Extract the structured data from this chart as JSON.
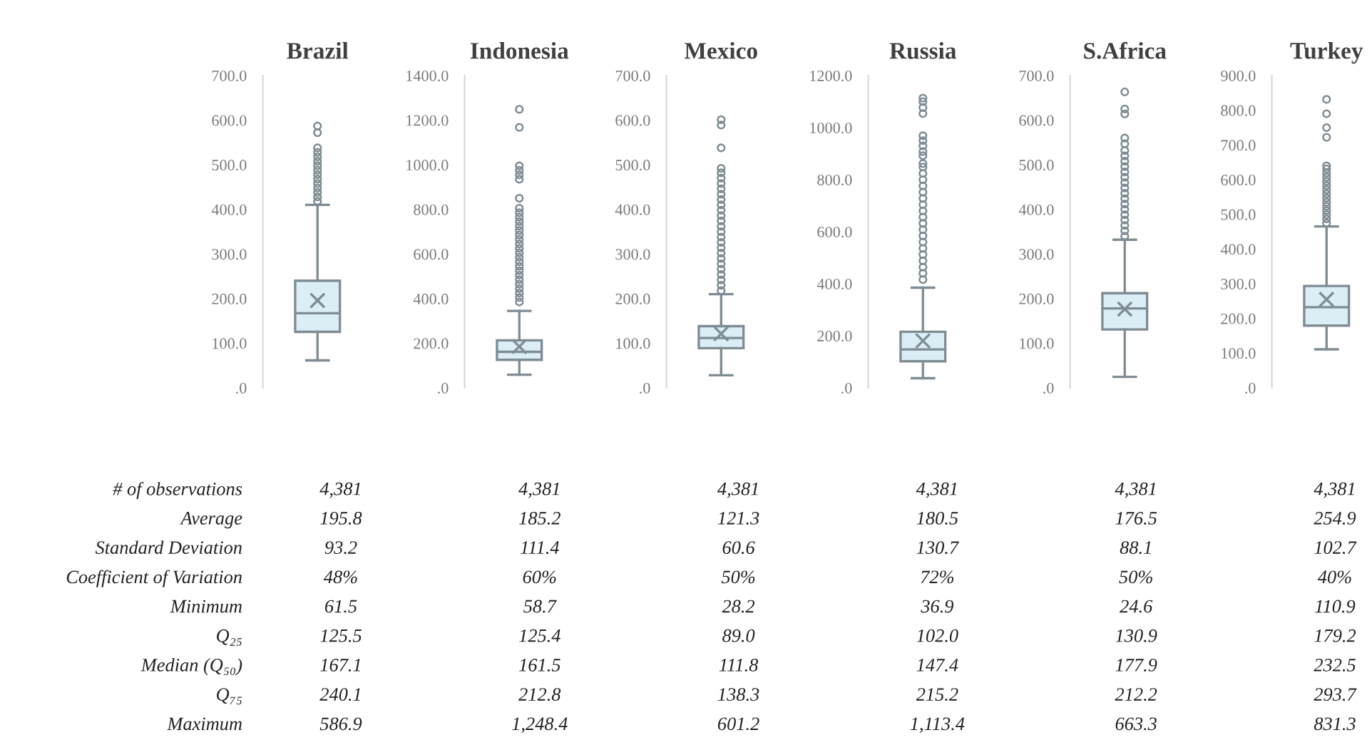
{
  "chart_data": [
    {
      "type": "other",
      "annotations": [
        "# of observations",
        "Average",
        "Standard Deviation",
        "Coefficient of Variation",
        "Minimum",
        "Q₂₅",
        "Median (Q₅₀)",
        "Q₇₅",
        "Maximum"
      ]
    },
    {
      "type": "box",
      "categories": [
        "Brazil"
      ],
      "ylim": [
        0,
        700
      ],
      "yticks": [
        {
          "value": 0,
          "label": ".0"
        },
        {
          "value": 100,
          "label": "100.0"
        },
        {
          "value": 200,
          "label": "200.0"
        },
        {
          "value": 300,
          "label": "300.0"
        },
        {
          "value": 400,
          "label": "400.0"
        },
        {
          "value": 500,
          "label": "500.0"
        },
        {
          "value": 600,
          "label": "600.0"
        },
        {
          "value": 700,
          "label": "700.0"
        }
      ],
      "boxes": [
        {
          "low": 61.5,
          "q1": 125.5,
          "median": 167.1,
          "q3": 240.1,
          "high": 410,
          "mean": 195.8,
          "outliers": [
            418,
            428,
            438,
            448,
            458,
            468,
            478,
            488,
            498,
            508,
            518,
            528,
            538,
            572,
            586.9
          ]
        }
      ],
      "annotations": [
        "4,381",
        "195.8",
        "93.2",
        "48%",
        "61.5",
        "125.5",
        "167.1",
        "240.1",
        "586.9"
      ]
    },
    {
      "type": "box",
      "categories": [
        "Indonesia"
      ],
      "ylim": [
        0,
        1400
      ],
      "yticks": [
        {
          "value": 0,
          "label": ".0"
        },
        {
          "value": 200,
          "label": "200.0"
        },
        {
          "value": 400,
          "label": "400.0"
        },
        {
          "value": 600,
          "label": "600.0"
        },
        {
          "value": 800,
          "label": "800.0"
        },
        {
          "value": 1000,
          "label": "1000.0"
        },
        {
          "value": 1200,
          "label": "1200.0"
        },
        {
          "value": 1400,
          "label": "1400.0"
        }
      ],
      "boxes": [
        {
          "low": 58.7,
          "q1": 125.4,
          "median": 161.5,
          "q3": 212.8,
          "high": 345,
          "mean": 185.2,
          "outliers": [
            385,
            405,
            425,
            445,
            465,
            485,
            505,
            525,
            545,
            565,
            585,
            605,
            625,
            645,
            665,
            685,
            705,
            725,
            745,
            765,
            785,
            805,
            850,
            935,
            955,
            975,
            995,
            1168,
            1248.4
          ]
        }
      ],
      "annotations": [
        "4,381",
        "185.2",
        "111.4",
        "60%",
        "58.7",
        "125.4",
        "161.5",
        "212.8",
        "1,248.4"
      ]
    },
    {
      "type": "box",
      "categories": [
        "Mexico"
      ],
      "ylim": [
        0,
        700
      ],
      "yticks": [
        {
          "value": 0,
          "label": ".0"
        },
        {
          "value": 100,
          "label": "100.0"
        },
        {
          "value": 200,
          "label": "200.0"
        },
        {
          "value": 300,
          "label": "300.0"
        },
        {
          "value": 400,
          "label": "400.0"
        },
        {
          "value": 500,
          "label": "500.0"
        },
        {
          "value": 600,
          "label": "600.0"
        },
        {
          "value": 700,
          "label": "700.0"
        }
      ],
      "boxes": [
        {
          "low": 28.2,
          "q1": 89.0,
          "median": 111.8,
          "q3": 138.3,
          "high": 210,
          "mean": 121.3,
          "outliers": [
            218,
            230,
            242,
            254,
            266,
            278,
            290,
            302,
            314,
            326,
            338,
            350,
            362,
            374,
            386,
            398,
            410,
            422,
            434,
            446,
            458,
            470,
            482,
            492,
            538,
            589,
            601.2
          ]
        }
      ],
      "annotations": [
        "4,381",
        "121.3",
        "60.6",
        "50%",
        "28.2",
        "89.0",
        "111.8",
        "138.3",
        "601.2"
      ]
    },
    {
      "type": "box",
      "categories": [
        "Russia"
      ],
      "ylim": [
        0,
        1200
      ],
      "yticks": [
        {
          "value": 0,
          "label": ".0"
        },
        {
          "value": 200,
          "label": "200.0"
        },
        {
          "value": 400,
          "label": "400.0"
        },
        {
          "value": 600,
          "label": "600.0"
        },
        {
          "value": 800,
          "label": "800.0"
        },
        {
          "value": 1000,
          "label": "1000.0"
        },
        {
          "value": 1200,
          "label": "1200.0"
        }
      ],
      "boxes": [
        {
          "low": 36.9,
          "q1": 102.0,
          "median": 147.4,
          "q3": 215.2,
          "high": 385,
          "mean": 180.5,
          "outliers": [
            416,
            440,
            464,
            488,
            512,
            536,
            560,
            584,
            608,
            632,
            656,
            680,
            704,
            728,
            752,
            776,
            800,
            824,
            848,
            862,
            892,
            908,
            930,
            950,
            969,
            1054,
            1077,
            1100,
            1113.4
          ]
        }
      ],
      "annotations": [
        "4,381",
        "180.5",
        "130.7",
        "72%",
        "36.9",
        "102.0",
        "147.4",
        "215.2",
        "1,113.4"
      ]
    },
    {
      "type": "box",
      "categories": [
        "S.Africa"
      ],
      "ylim": [
        0,
        700
      ],
      "yticks": [
        {
          "value": 0,
          "label": ".0"
        },
        {
          "value": 100,
          "label": "100.0"
        },
        {
          "value": 200,
          "label": "200.0"
        },
        {
          "value": 300,
          "label": "300.0"
        },
        {
          "value": 400,
          "label": "400.0"
        },
        {
          "value": 500,
          "label": "500.0"
        },
        {
          "value": 600,
          "label": "600.0"
        },
        {
          "value": 700,
          "label": "700.0"
        }
      ],
      "boxes": [
        {
          "low": 24.6,
          "q1": 130.9,
          "median": 177.9,
          "q3": 212.2,
          "high": 332,
          "mean": 176.5,
          "outliers": [
            340,
            352,
            364,
            376,
            388,
            400,
            412,
            424,
            436,
            448,
            460,
            472,
            484,
            496,
            508,
            520,
            532,
            547,
            560,
            614,
            625,
            663.3
          ]
        }
      ],
      "annotations": [
        "4,381",
        "176.5",
        "88.1",
        "50%",
        "24.6",
        "130.9",
        "177.9",
        "212.2",
        "663.3"
      ]
    },
    {
      "type": "box",
      "categories": [
        "Turkey"
      ],
      "ylim": [
        0,
        900
      ],
      "yticks": [
        {
          "value": 0,
          "label": ".0"
        },
        {
          "value": 100,
          "label": "100.0"
        },
        {
          "value": 200,
          "label": "200.0"
        },
        {
          "value": 300,
          "label": "300.0"
        },
        {
          "value": 400,
          "label": "400.0"
        },
        {
          "value": 500,
          "label": "500.0"
        },
        {
          "value": 600,
          "label": "600.0"
        },
        {
          "value": 700,
          "label": "700.0"
        },
        {
          "value": 800,
          "label": "800.0"
        },
        {
          "value": 900,
          "label": "900.0"
        }
      ],
      "boxes": [
        {
          "low": 110.9,
          "q1": 179.2,
          "median": 232.5,
          "q3": 293.7,
          "high": 465,
          "mean": 254.9,
          "outliers": [
            475,
            487,
            499,
            511,
            523,
            535,
            547,
            559,
            571,
            583,
            595,
            607,
            619,
            631,
            640,
            722,
            750,
            790,
            831.3
          ]
        }
      ],
      "annotations": [
        "4,381",
        "254.9",
        "102.7",
        "40%",
        "110.9",
        "179.2",
        "232.5",
        "293.7",
        "831.3"
      ]
    }
  ]
}
